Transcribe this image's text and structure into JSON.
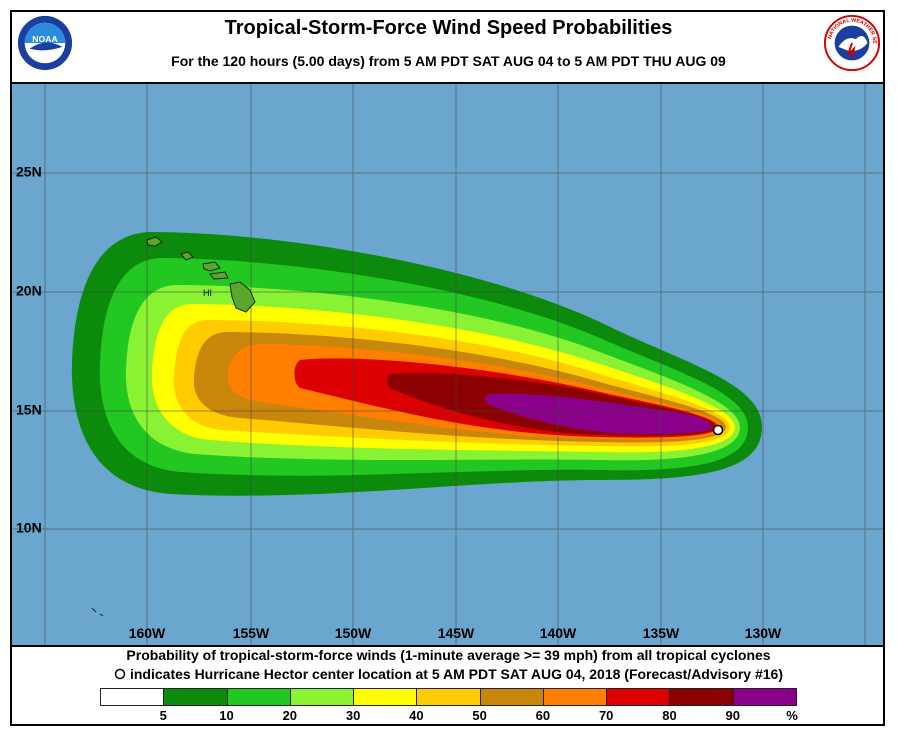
{
  "header": {
    "title": "Tropical-Storm-Force Wind Speed Probabilities",
    "subtitle": "For the 120 hours (5.00 days) from 5 AM PDT SAT AUG 04 to 5 AM PDT THU AUG 09"
  },
  "logos": {
    "left_text": "NOAA",
    "right_text": "NATIONAL WEATHER SERVICE"
  },
  "map": {
    "ocean_color": "#6aa6cd",
    "latitudes": [
      "25N",
      "20N",
      "15N",
      "10N"
    ],
    "longitudes": [
      "160W",
      "155W",
      "150W",
      "145W",
      "140W",
      "135W",
      "130W"
    ],
    "island_label": "HI",
    "storm_center_marker": "open-circle"
  },
  "caption": {
    "line1": "Probability of tropical-storm-force winds (1-minute average >= 39 mph) from all tropical cyclones",
    "line2": "indicates Hurricane Hector center location at 5 AM PDT SAT AUG 04, 2018 (Forecast/Advisory #16)"
  },
  "scale": {
    "colors": [
      "#ffffff",
      "#0c8a0c",
      "#22c722",
      "#88f233",
      "#ffff00",
      "#ffcc00",
      "#c8860a",
      "#ff8000",
      "#dd0000",
      "#8b0000",
      "#8b008b"
    ],
    "labels": [
      "5",
      "10",
      "20",
      "30",
      "40",
      "50",
      "60",
      "70",
      "80",
      "90",
      "%"
    ]
  }
}
